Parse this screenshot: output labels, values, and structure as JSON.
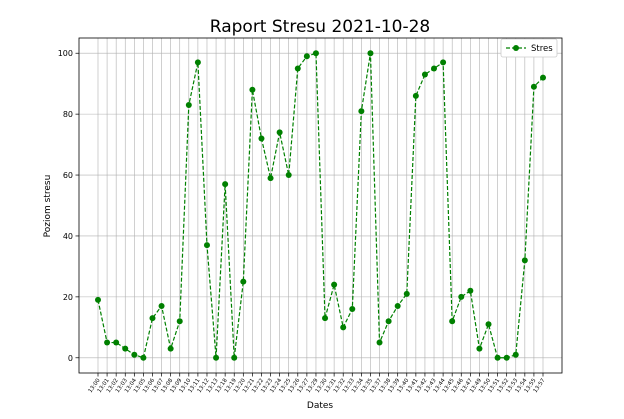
{
  "chart_data": {
    "type": "line",
    "title": "Raport Stresu 2021-10-28",
    "xlabel": "Dates",
    "ylabel": "Poziom stresu",
    "ylim": [
      -5,
      105
    ],
    "yticks": [
      0,
      20,
      40,
      60,
      80,
      100
    ],
    "grid": true,
    "legend_position": "top-right",
    "categories": [
      "13:00",
      "13:01",
      "13:02",
      "13:03",
      "13:04",
      "13:05",
      "13:06",
      "13:07",
      "13:08",
      "13:09",
      "13:10",
      "13:11",
      "13:12",
      "13:13",
      "13:18",
      "13:19",
      "13:20",
      "13:21",
      "13:22",
      "13:23",
      "13:24",
      "13:25",
      "13:26",
      "13:27",
      "13:29",
      "13:30",
      "13:31",
      "13:32",
      "13:33",
      "13:34",
      "13:35",
      "13:37",
      "13:38",
      "13:39",
      "13:40",
      "13:41",
      "13:42",
      "13:43",
      "13:44",
      "13:45",
      "13:46",
      "13:47",
      "13:49",
      "13:50",
      "13:51",
      "13:52",
      "13:53",
      "13:54",
      "13:55",
      "13:57"
    ],
    "series": [
      {
        "name": "Stres",
        "color": "#008000",
        "style": "dashed",
        "marker": "circle",
        "values": [
          19,
          5,
          5,
          3,
          1,
          0,
          13,
          17,
          3,
          12,
          83,
          97,
          37,
          0,
          57,
          0,
          25,
          88,
          72,
          59,
          74,
          60,
          95,
          99,
          100,
          13,
          24,
          10,
          16,
          81,
          100,
          5,
          12,
          17,
          21,
          86,
          93,
          95,
          97,
          12,
          20,
          22,
          3,
          11,
          0,
          0,
          1,
          32,
          89,
          92
        ]
      }
    ]
  }
}
